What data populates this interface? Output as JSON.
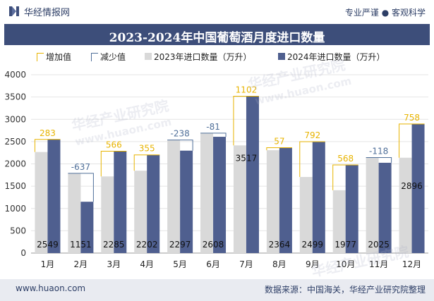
{
  "header": {
    "brand": "华经情报网",
    "slogan": "专业严谨 ● 客观科学"
  },
  "colors": {
    "series2023": "#d9d9d9",
    "series2024": "#4f5f8f",
    "increase": "#e8b400",
    "decrease": "#4f6f99",
    "title_bg": "#3d4e7a"
  },
  "legend": {
    "increase": "增加值",
    "decrease": "减少值",
    "series2023": "2023年进口数量（万升）",
    "series2024": "2024年进口数量（万升）"
  },
  "footer": {
    "website": "www.huaon.com",
    "source": "数据来源：中国海关，华经产业研究院整理"
  },
  "watermarks": [
    "华经产业研究院",
    "www.huaon.com"
  ],
  "chart_data": {
    "type": "bar",
    "title": "2023-2024年中国葡萄酒月度进口数量",
    "categories": [
      "1月",
      "2月",
      "3月",
      "4月",
      "5月",
      "6月",
      "7月",
      "8月",
      "9月",
      "10月",
      "11月",
      "12月"
    ],
    "series": [
      {
        "name": "2023年进口数量（万升）",
        "values": [
          2266,
          1788,
          1719,
          1847,
          2535,
          2689,
          2415,
          2307,
          1707,
          1409,
          2143,
          2138
        ]
      },
      {
        "name": "2024年进口数量（万升）",
        "values": [
          2549,
          1151,
          2285,
          2202,
          2297,
          2608,
          3517,
          2364,
          2499,
          1977,
          2025,
          2896
        ]
      }
    ],
    "differences": [
      283,
      -637,
      566,
      355,
      -238,
      -81,
      1102,
      57,
      792,
      568,
      -118,
      758
    ],
    "ylim": [
      0,
      4000
    ],
    "yticks": [
      0,
      500,
      1000,
      1500,
      2000,
      2500,
      3000,
      3500,
      4000
    ],
    "grid": true,
    "legend_position": "top"
  }
}
